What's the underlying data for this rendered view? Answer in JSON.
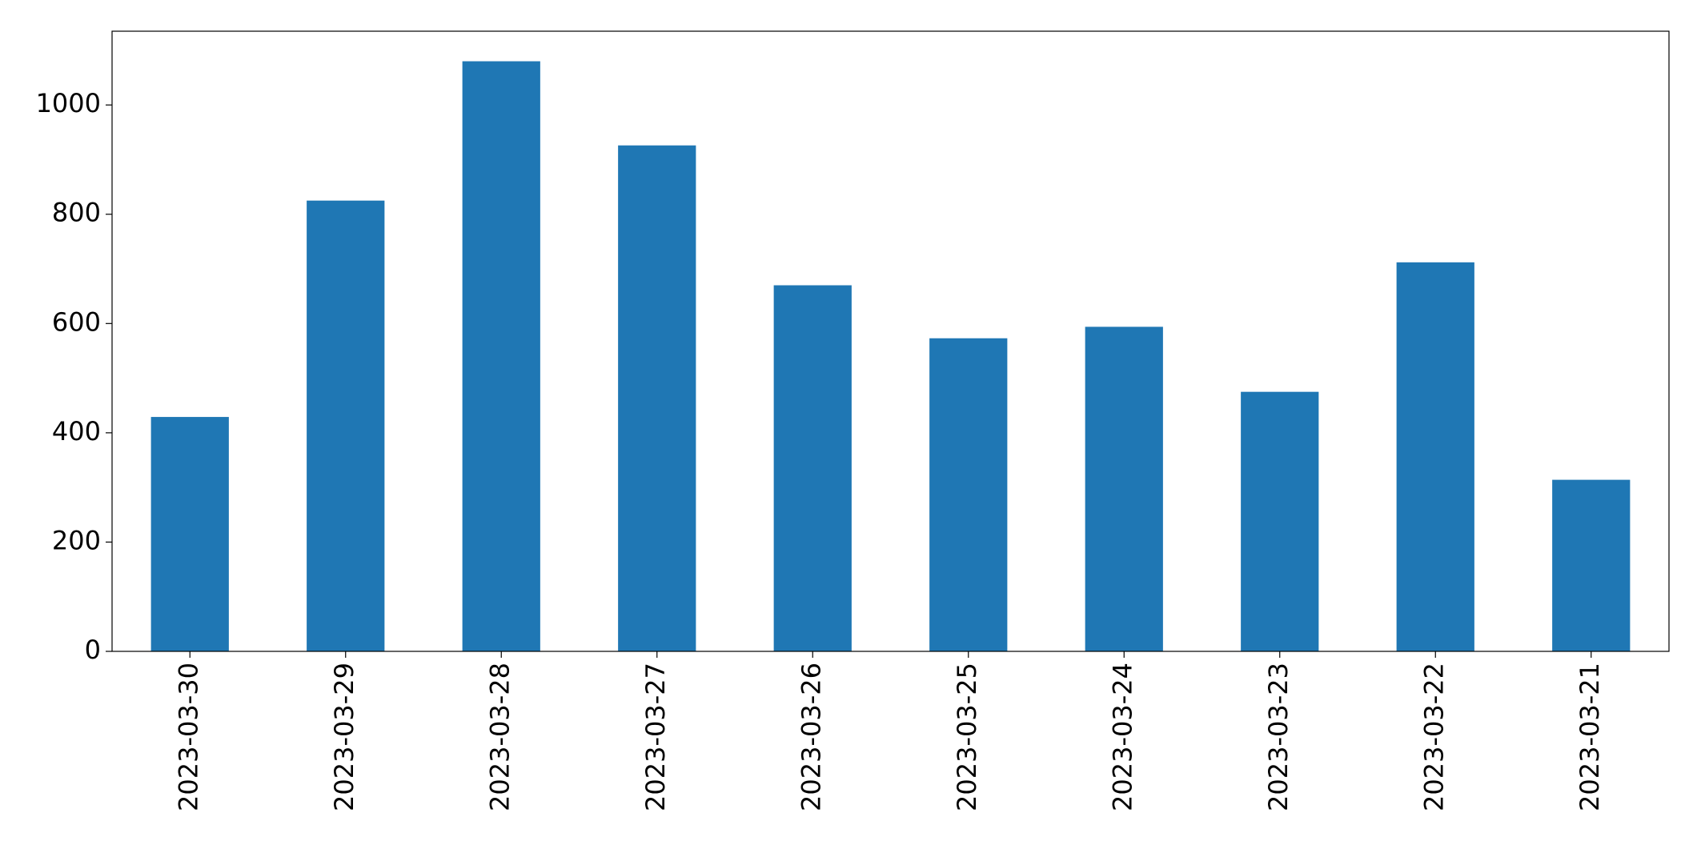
{
  "chart_data": {
    "type": "bar",
    "categories": [
      "2023-03-30",
      "2023-03-29",
      "2023-03-28",
      "2023-03-27",
      "2023-03-26",
      "2023-03-25",
      "2023-03-24",
      "2023-03-23",
      "2023-03-22",
      "2023-03-21"
    ],
    "values": [
      429,
      825,
      1080,
      926,
      670,
      573,
      594,
      475,
      712,
      314
    ],
    "color": "#1f77b4",
    "ylim": [
      0,
      1135
    ],
    "yticks": [
      0,
      200,
      400,
      600,
      800,
      1000
    ],
    "grid": false
  }
}
